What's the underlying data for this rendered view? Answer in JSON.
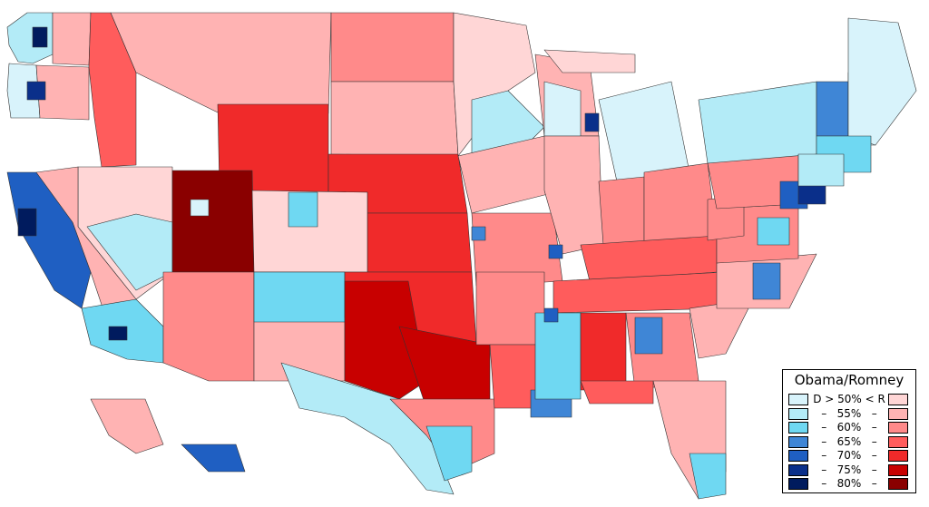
{
  "legend": {
    "title": "Obama/Romney",
    "rows": [
      {
        "label": "D > 50% < R",
        "dem": "#d8f3fb",
        "rep": "#ffd6d6"
      },
      {
        "label": "–   55%   –",
        "dem": "#b3ebf7",
        "rep": "#ffb3b3"
      },
      {
        "label": "–   60%   –",
        "dem": "#6fd8f2",
        "rep": "#ff8a8a"
      },
      {
        "label": "–   65%   –",
        "dem": "#3f86d6",
        "rep": "#ff5c5c"
      },
      {
        "label": "–   70%   –",
        "dem": "#1f5fc2",
        "rep": "#f02a2a"
      },
      {
        "label": "–   75%   –",
        "dem": "#0a2f8a",
        "rep": "#c80000"
      },
      {
        "label": "–   80%   –",
        "dem": "#001b5e",
        "rep": "#8a0000"
      }
    ]
  },
  "colors": {
    "d50": "#d8f3fb",
    "d55": "#b3ebf7",
    "d60": "#6fd8f2",
    "d65": "#3f86d6",
    "d70": "#1f5fc2",
    "d75": "#0a2f8a",
    "d80": "#001b5e",
    "r50": "#ffd6d6",
    "r55": "#ffb3b3",
    "r60": "#ff8a8a",
    "r65": "#ff5c5c",
    "r70": "#f02a2a",
    "r75": "#c80000",
    "r80": "#8a0000"
  }
}
